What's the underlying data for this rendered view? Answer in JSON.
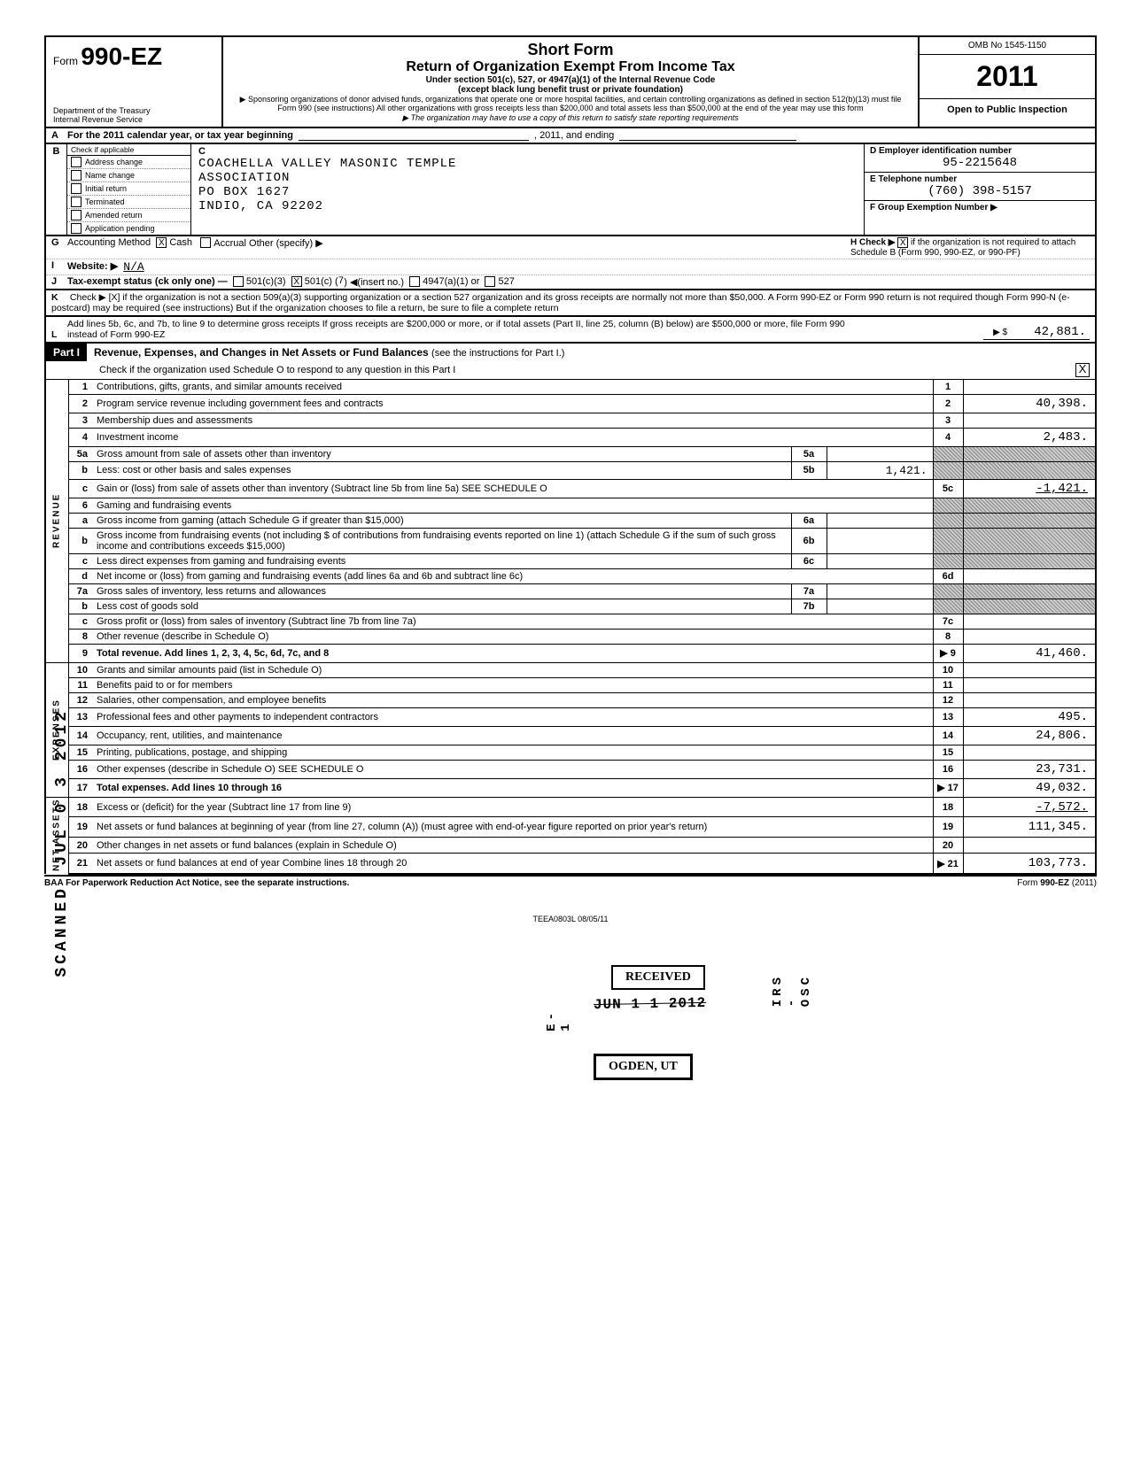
{
  "header": {
    "form_prefix": "Form",
    "form_number": "990-EZ",
    "dept1": "Department of the Treasury",
    "dept2": "Internal Revenue Service",
    "title1": "Short Form",
    "title2": "Return of Organization Exempt From Income Tax",
    "title3": "Under section 501(c), 527, or 4947(a)(1) of the Internal Revenue Code",
    "title4": "(except black lung benefit trust or private foundation)",
    "note1": "▶ Sponsoring organizations of donor advised funds, organizations that operate one or more hospital facilities, and certain controlling organizations as defined in section 512(b)(13) must file Form 990 (see instructions)  All other organizations with gross receipts less than $200,000 and total assets less than $500,000 at the end of the year may use this form",
    "note2": "▶ The organization may have to use a copy of this return to satisfy state reporting requirements",
    "omb": "OMB No 1545-1150",
    "year": "2011",
    "open": "Open to Public Inspection"
  },
  "lineA": {
    "label": "A",
    "text_pre": "For the 2011 calendar year, or tax year beginning",
    "text_mid": ", 2011, and ending"
  },
  "blockB": {
    "label": "B",
    "check_label": "Check if applicable",
    "checks": [
      "Address change",
      "Name change",
      "Initial return",
      "Terminated",
      "Amended return",
      "Application pending"
    ],
    "c_label": "C",
    "org_name": "COACHELLA VALLEY MASONIC TEMPLE",
    "org_name2": "ASSOCIATION",
    "org_addr1": "PO BOX 1627",
    "org_addr2": "INDIO, CA 92202",
    "d_label": "D  Employer identification number",
    "d_val": "95-2215648",
    "e_label": "E  Telephone number",
    "e_val": "(760) 398-5157",
    "f_label": "F  Group Exemption Number  ▶"
  },
  "gij": {
    "g_label": "G",
    "g_text": "Accounting Method",
    "g_cash": "Cash",
    "g_accrual": "Accrual   Other (specify) ▶",
    "i_label": "I",
    "i_text": "Website: ▶",
    "i_val": "N/A",
    "j_label": "J",
    "j_text": "Tax-exempt status (ck only one) —",
    "j_opts": "501(c)(3)        501(c) ( 7  )  ◀(insert no.)        4947(a)(1) or        527",
    "h_label": "H  Check ▶",
    "h_text": "if the organization is not required to attach Schedule B (Form 990, 990-EZ, or 990-PF)"
  },
  "rowK": {
    "label": "K",
    "text": "Check ▶  [X]  if the organization is not a section 509(a)(3) supporting organization or a section 527 organization and its gross receipts are normally not more than $50,000. A Form 990-EZ or Form 990 return is not required though Form 990-N (e-postcard) may be required (see instructions)  But if the organization chooses to file a return, be sure to file a complete return"
  },
  "rowL": {
    "label": "L",
    "text": "Add lines 5b, 6c, and 7b, to line 9 to determine gross receipts  If gross receipts are $200,000 or more, or if total assets (Part II, line 25, column (B) below) are $500,000 or more, file Form 990 instead of Form 990-EZ",
    "amount": "42,881."
  },
  "part1": {
    "label": "Part I",
    "title": "Revenue, Expenses, and Changes in Net Assets or Fund Balances",
    "note": "(see the instructions for Part I.)",
    "schedO": "Check if the organization used Schedule O to respond to any question in this Part I",
    "schedO_checked": "X"
  },
  "sidelabels": {
    "revenue": "REVENUE",
    "expenses": "EXPENSES",
    "net": "NET ASSETS"
  },
  "lines": [
    {
      "n": "1",
      "d": "Contributions, gifts, grants, and similar amounts received",
      "ln": "1",
      "amt": ""
    },
    {
      "n": "2",
      "d": "Program service revenue including government fees and contracts",
      "ln": "2",
      "amt": "40,398."
    },
    {
      "n": "3",
      "d": "Membership dues and assessments",
      "ln": "3",
      "amt": ""
    },
    {
      "n": "4",
      "d": "Investment income",
      "ln": "4",
      "amt": "2,483."
    },
    {
      "n": "5a",
      "d": "Gross amount from sale of assets other than inventory",
      "sub": "5a",
      "subval": ""
    },
    {
      "n": "b",
      "d": "Less: cost or other basis and sales expenses",
      "sub": "5b",
      "subval": "1,421."
    },
    {
      "n": "c",
      "d": "Gain or (loss) from sale of assets other than inventory (Subtract line 5b from line 5a)          SEE SCHEDULE O",
      "ln": "5c",
      "amt": "-1,421."
    },
    {
      "n": "6",
      "d": "Gaming and fundraising events"
    },
    {
      "n": "a",
      "d": "Gross income from gaming (attach Schedule G if greater than $15,000)",
      "sub": "6a",
      "subval": ""
    },
    {
      "n": "b",
      "d": "Gross income from fundraising events (not including $                       of contributions from fundraising events reported on line 1) (attach Schedule G if the sum of such gross income and contributions exceeds $15,000)",
      "sub": "6b",
      "subval": ""
    },
    {
      "n": "c",
      "d": "Less  direct expenses from gaming and fundraising events",
      "sub": "6c",
      "subval": ""
    },
    {
      "n": "d",
      "d": "Net income or (loss) from gaming and fundraising events (add lines 6a and 6b and subtract line 6c)",
      "ln": "6d",
      "amt": ""
    },
    {
      "n": "7a",
      "d": "Gross sales of inventory, less returns and allowances",
      "sub": "7a",
      "subval": ""
    },
    {
      "n": "b",
      "d": "Less  cost of goods sold",
      "sub": "7b",
      "subval": ""
    },
    {
      "n": "c",
      "d": "Gross profit or (loss) from sales of inventory (Subtract line 7b from line 7a)",
      "ln": "7c",
      "amt": ""
    },
    {
      "n": "8",
      "d": "Other revenue (describe in Schedule O)",
      "ln": "8",
      "amt": ""
    },
    {
      "n": "9",
      "d": "Total revenue. Add lines 1, 2, 3, 4, 5c, 6d, 7c, and 8",
      "ln": "9",
      "amt": "41,460.",
      "bold": true,
      "arrow": true
    },
    {
      "n": "10",
      "d": "Grants and similar amounts paid (list in Schedule O)",
      "ln": "10",
      "amt": ""
    },
    {
      "n": "11",
      "d": "Benefits paid to or for members",
      "ln": "11",
      "amt": ""
    },
    {
      "n": "12",
      "d": "Salaries, other compensation, and employee benefits",
      "ln": "12",
      "amt": ""
    },
    {
      "n": "13",
      "d": "Professional fees and other payments to independent contractors",
      "ln": "13",
      "amt": "495."
    },
    {
      "n": "14",
      "d": "Occupancy, rent, utilities, and maintenance",
      "ln": "14",
      "amt": "24,806."
    },
    {
      "n": "15",
      "d": "Printing, publications, postage, and shipping",
      "ln": "15",
      "amt": ""
    },
    {
      "n": "16",
      "d": "Other expenses (describe in Schedule O)                                          SEE SCHEDULE O",
      "ln": "16",
      "amt": "23,731."
    },
    {
      "n": "17",
      "d": "Total expenses. Add lines 10 through 16",
      "ln": "17",
      "amt": "49,032.",
      "bold": true,
      "arrow": true
    },
    {
      "n": "18",
      "d": "Excess or (deficit) for the year (Subtract line 17 from line 9)",
      "ln": "18",
      "amt": "-7,572."
    },
    {
      "n": "19",
      "d": "Net assets or fund balances at beginning of year (from line 27, column (A)) (must agree with end-of-year figure reported on prior year's return)",
      "ln": "19",
      "amt": "111,345."
    },
    {
      "n": "20",
      "d": "Other changes in net assets or fund balances (explain in Schedule O)",
      "ln": "20",
      "amt": ""
    },
    {
      "n": "21",
      "d": "Net assets or fund balances at end of year  Combine lines 18 through 20",
      "ln": "21",
      "amt": "103,773.",
      "arrow": true
    }
  ],
  "footer": {
    "left": "BAA  For Paperwork Reduction Act Notice, see the separate instructions.",
    "center": "TEEA0803L  08/05/11",
    "right": "Form 990-EZ (2011)"
  },
  "stamps": {
    "scanned": "SCANNED",
    "date": "JUL 0 3 2012",
    "received": "RECEIVED",
    "received_date": "JUN 1 1 2012",
    "ogden": "OGDEN, UT",
    "irs": "IRS - OSC",
    "e1": "E-1"
  }
}
